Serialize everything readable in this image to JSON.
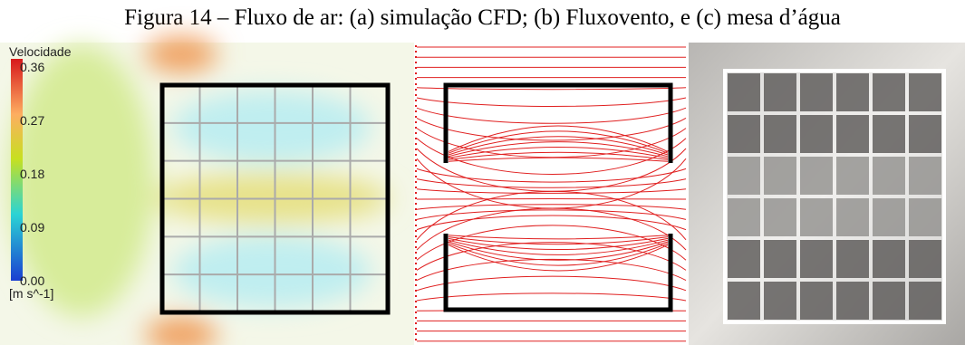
{
  "caption": "Figura 14 – Fluxo de ar: (a) simulação CFD; (b) Fluxovento, e (c) mesa d’água",
  "colorbar": {
    "title": "Velocidade",
    "ticks": [
      "0.36",
      "0.27",
      "0.18",
      "0.09",
      "0.00"
    ],
    "unit": "[m s^-1]"
  }
}
